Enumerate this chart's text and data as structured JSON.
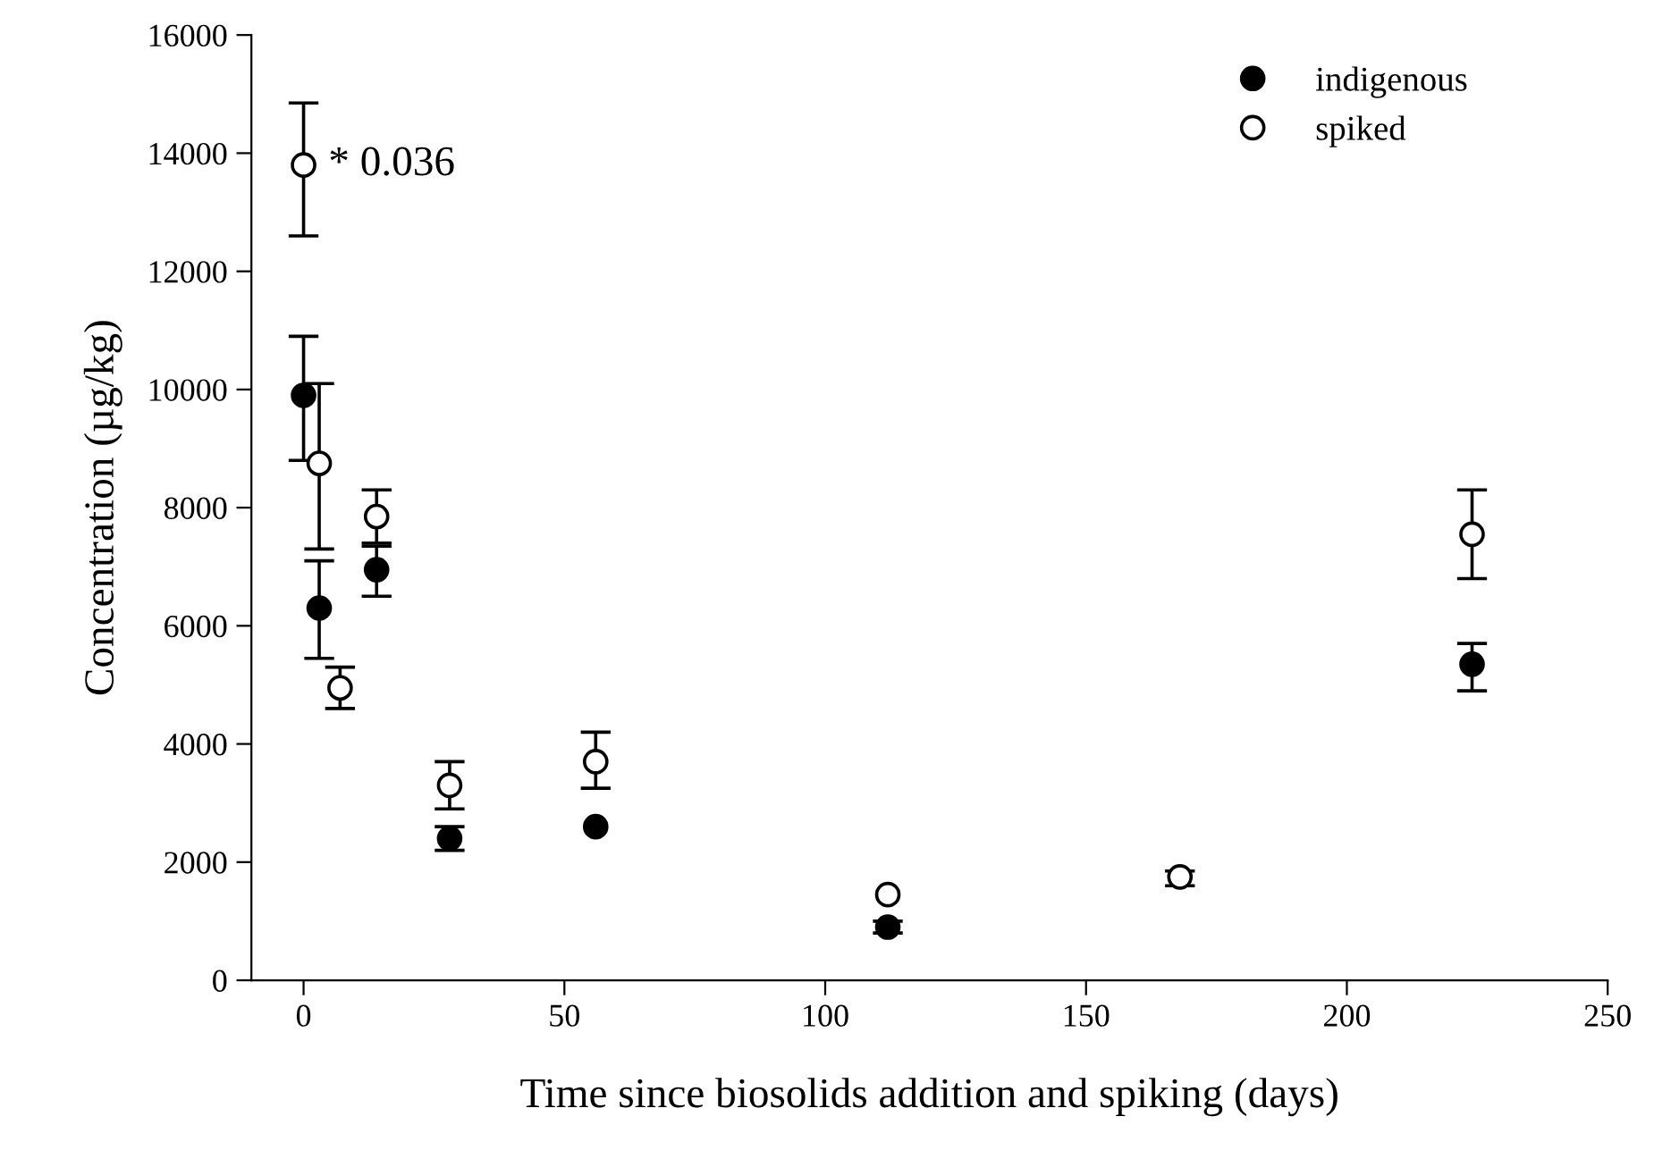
{
  "chart_data": {
    "type": "scatter",
    "xlabel": "Time since biosolids addition and spiking (days)",
    "ylabel": "Concentration (µg/kg)",
    "x": [
      0,
      3,
      7,
      14,
      28,
      56,
      112,
      168,
      224
    ],
    "series": [
      {
        "name": "indigenous",
        "color": "#000000",
        "values": [
          9900,
          6300,
          null,
          6950,
          2400,
          2600,
          900,
          null,
          5350
        ],
        "errors": [
          [
            8800,
            10900
          ],
          [
            5450,
            7100
          ],
          null,
          [
            6500,
            7350
          ],
          [
            2200,
            2600
          ],
          null,
          [
            800,
            1000
          ],
          null,
          [
            4900,
            5700
          ]
        ]
      },
      {
        "name": "spiked",
        "color": "#ffffff",
        "values": [
          13800,
          8750,
          4950,
          7850,
          3300,
          3700,
          1450,
          1750,
          7550
        ],
        "errors": [
          [
            12600,
            14850
          ],
          [
            7300,
            10100
          ],
          [
            4600,
            5300
          ],
          [
            7400,
            8300
          ],
          [
            2900,
            3700
          ],
          [
            3250,
            4200
          ],
          null,
          [
            1600,
            1850
          ],
          [
            6800,
            8300
          ]
        ]
      }
    ],
    "annotations": [
      {
        "text": "* 0.036",
        "x": 0,
        "y": 13800
      }
    ],
    "xlim": [
      -10,
      250
    ],
    "xticks": [
      0,
      50,
      100,
      150,
      200,
      250
    ],
    "ylim": [
      0,
      16000
    ],
    "yticks": [
      0,
      2000,
      4000,
      6000,
      8000,
      10000,
      12000,
      14000,
      16000
    ],
    "grid": false,
    "legend": "top right",
    "marker": "circle"
  }
}
